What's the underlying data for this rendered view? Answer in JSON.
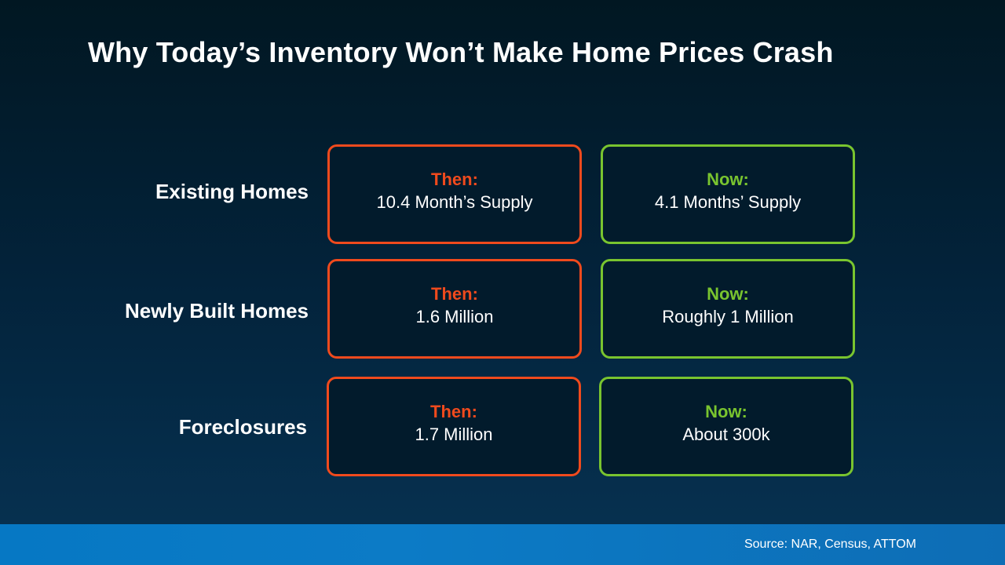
{
  "slide": {
    "title": "Why Today’s Inventory Won’t Make Home Prices Crash",
    "source": "Source: NAR, Census, ATTOM"
  },
  "rows": [
    {
      "label": "Existing Homes",
      "then": {
        "heading": "Then:",
        "value": "10.4 Month’s Supply"
      },
      "now": {
        "heading": "Now:",
        "value": "4.1 Months’ Supply"
      }
    },
    {
      "label": "Newly Built Homes",
      "then": {
        "heading": "Then:",
        "value": "1.6 Million"
      },
      "now": {
        "heading": "Now:",
        "value": "Roughly 1 Million"
      }
    },
    {
      "label": "Foreclosures",
      "then": {
        "heading": "Then:",
        "value": "1.7 Million"
      },
      "now": {
        "heading": "Now:",
        "value": "About 300k"
      }
    }
  ],
  "colors": {
    "then_accent": "#f04a1d",
    "now_accent": "#79c42f",
    "footer_bar": "#0678c4"
  }
}
